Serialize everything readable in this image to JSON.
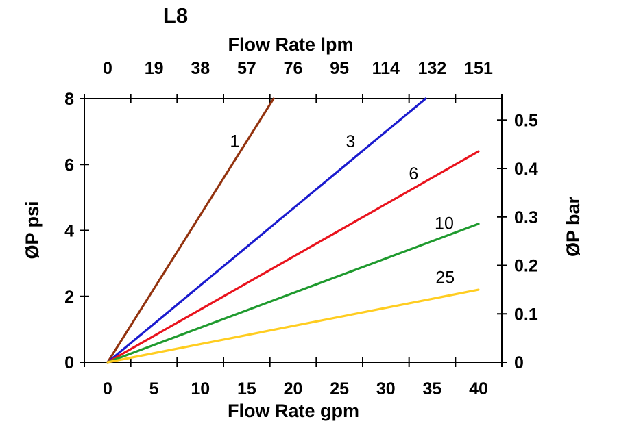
{
  "chart_data": {
    "type": "line",
    "title": "L8",
    "x_top": {
      "label": "Flow Rate lpm",
      "ticks": [
        "0",
        "19",
        "38",
        "57",
        "76",
        "95",
        "114",
        "132",
        "151"
      ]
    },
    "x_bottom": {
      "label": "Flow Rate gpm",
      "ticks": [
        "0",
        "5",
        "10",
        "15",
        "20",
        "25",
        "30",
        "35",
        "40"
      ],
      "range": [
        0,
        40
      ]
    },
    "y_left": {
      "label": "ØP psi",
      "ticks": [
        "8",
        "6",
        "4",
        "2",
        "0"
      ],
      "range": [
        0,
        8
      ]
    },
    "y_right": {
      "label": "ØP bar",
      "ticks": [
        "0.5",
        "0.4",
        "0.3",
        "0.2",
        "0.1",
        "0"
      ]
    },
    "grid": false,
    "legend": "inline-line-labels",
    "series": [
      {
        "name": "1",
        "color": "#93330F",
        "points": [
          [
            0,
            0
          ],
          [
            17.9,
            8.0
          ]
        ]
      },
      {
        "name": "3",
        "color": "#1B1BCE",
        "points": [
          [
            0,
            0
          ],
          [
            34.3,
            8.0
          ]
        ]
      },
      {
        "name": "6",
        "color": "#E9131D",
        "points": [
          [
            0,
            0
          ],
          [
            40.0,
            6.4
          ]
        ]
      },
      {
        "name": "10",
        "color": "#1F9A2E",
        "points": [
          [
            0,
            0
          ],
          [
            40.0,
            4.2
          ]
        ]
      },
      {
        "name": "25",
        "color": "#FFCD21",
        "points": [
          [
            0,
            0
          ],
          [
            40.0,
            2.2
          ]
        ]
      }
    ],
    "axis_color": "#000000",
    "background_color": "#FFFFFF"
  }
}
